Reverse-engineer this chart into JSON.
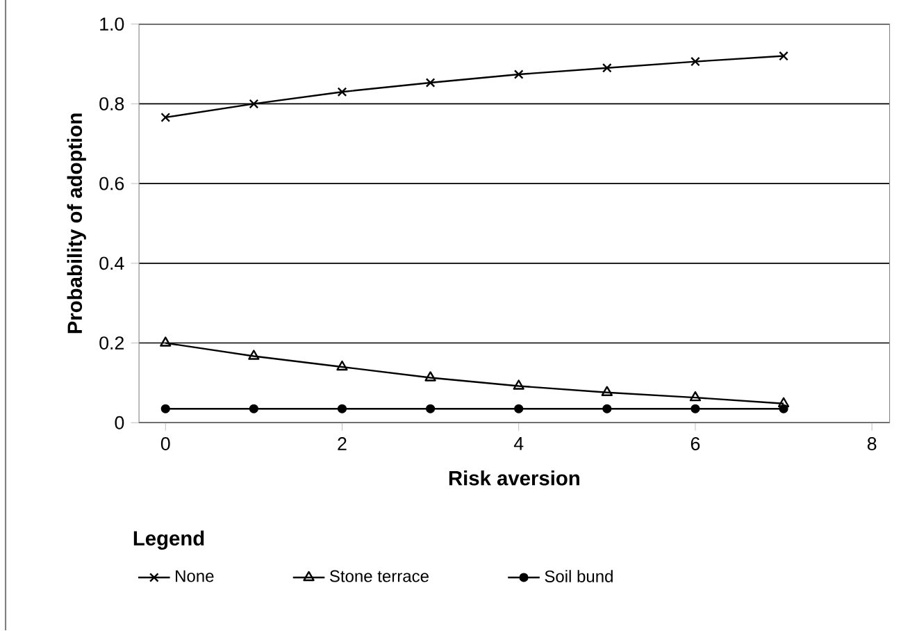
{
  "chart_data": {
    "type": "line",
    "xlabel": "Risk aversion",
    "ylabel": "Probability of adoption",
    "legend_title": "Legend",
    "x": [
      0,
      1,
      2,
      3,
      4,
      5,
      6,
      7
    ],
    "series": [
      {
        "name": "None",
        "color": "#000000",
        "marker": "cross",
        "values": [
          0.766,
          0.8,
          0.83,
          0.853,
          0.874,
          0.89,
          0.906,
          0.92
        ]
      },
      {
        "name": "Stone terrace",
        "color": "#000000",
        "marker": "triangle",
        "values": [
          0.2,
          0.167,
          0.14,
          0.113,
          0.092,
          0.076,
          0.063,
          0.048
        ]
      },
      {
        "name": "Soil bund",
        "color": "#000000",
        "marker": "circle",
        "values": [
          0.035,
          0.035,
          0.035,
          0.035,
          0.035,
          0.035,
          0.035,
          0.035
        ]
      }
    ],
    "xlim": [
      -0.3,
      8.2
    ],
    "xticks": [
      0,
      2,
      4,
      6,
      8
    ],
    "ylim": [
      0,
      1.0
    ],
    "yticks": [
      0,
      {
        "value": 0.2,
        "label": "0.2"
      },
      {
        "value": 0.4,
        "label": "0.4"
      },
      {
        "value": 0.6,
        "label": "0.6"
      },
      {
        "value": 0.8,
        "label": "0.8"
      },
      {
        "value": 1.0,
        "label": "1.0"
      }
    ],
    "grid": "y",
    "legend": "bottom",
    "line_style": "solid"
  }
}
